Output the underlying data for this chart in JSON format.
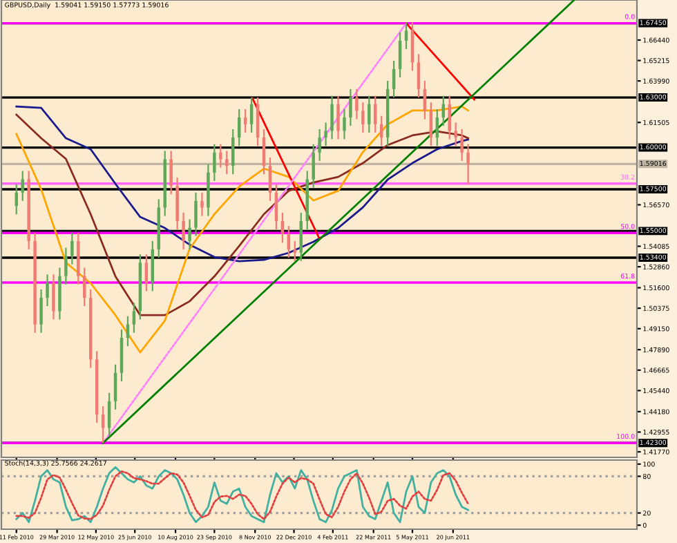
{
  "chart_data": [
    {
      "type": "candlestick",
      "title": "GBPUSD,Daily  1.59041 1.59150 1.57773 1.59016",
      "x": [
        "2010-02-11",
        "2010-02-18",
        "2010-02-25",
        "2010-03-04",
        "2010-03-11",
        "2010-03-18",
        "2010-03-25",
        "2010-04-01",
        "2010-04-08",
        "2010-04-15",
        "2010-04-22",
        "2010-04-29",
        "2010-05-06",
        "2010-05-13",
        "2010-05-20",
        "2010-05-27",
        "2010-06-03",
        "2010-06-10",
        "2010-06-17",
        "2010-06-24",
        "2010-07-01",
        "2010-07-08",
        "2010-07-15",
        "2010-07-22",
        "2010-07-29",
        "2010-08-05",
        "2010-08-12",
        "2010-08-19",
        "2010-08-26",
        "2010-09-02",
        "2010-09-09",
        "2010-09-16",
        "2010-09-23",
        "2010-09-30",
        "2010-10-07",
        "2010-10-14",
        "2010-10-21",
        "2010-10-28",
        "2010-11-04",
        "2010-11-11",
        "2010-11-18",
        "2010-11-25",
        "2010-12-02",
        "2010-12-09",
        "2010-12-16",
        "2010-12-23",
        "2010-12-30",
        "2011-01-06",
        "2011-01-13",
        "2011-01-20",
        "2011-01-27",
        "2011-02-03",
        "2011-02-10",
        "2011-02-17",
        "2011-02-24",
        "2011-03-03",
        "2011-03-10",
        "2011-03-17",
        "2011-03-24",
        "2011-03-31",
        "2011-04-07",
        "2011-04-14",
        "2011-04-21",
        "2011-04-28",
        "2011-05-05",
        "2011-05-12",
        "2011-05-19",
        "2011-05-26",
        "2011-06-02",
        "2011-06-09",
        "2011-06-16",
        "2011-06-23",
        "2011-06-30",
        "2011-07-07"
      ],
      "ohlc": [
        [
          1.565,
          1.578,
          1.56,
          1.573
        ],
        [
          1.573,
          1.586,
          1.568,
          1.581
        ],
        [
          1.581,
          1.586,
          1.539,
          1.544
        ],
        [
          1.544,
          1.549,
          1.489,
          1.494
        ],
        [
          1.494,
          1.515,
          1.489,
          1.51
        ],
        [
          1.51,
          1.524,
          1.505,
          1.519
        ],
        [
          1.519,
          1.524,
          1.497,
          1.502
        ],
        [
          1.502,
          1.528,
          1.497,
          1.523
        ],
        [
          1.523,
          1.54,
          1.518,
          1.535
        ],
        [
          1.535,
          1.549,
          1.53,
          1.544
        ],
        [
          1.544,
          1.549,
          1.518,
          1.523
        ],
        [
          1.523,
          1.528,
          1.505,
          1.51
        ],
        [
          1.51,
          1.515,
          1.468,
          1.473
        ],
        [
          1.473,
          1.478,
          1.435,
          1.44
        ],
        [
          1.44,
          1.445,
          1.423,
          1.432
        ],
        [
          1.432,
          1.453,
          1.427,
          1.448
        ],
        [
          1.448,
          1.47,
          1.443,
          1.465
        ],
        [
          1.465,
          1.491,
          1.46,
          1.486
        ],
        [
          1.486,
          1.499,
          1.481,
          1.494
        ],
        [
          1.494,
          1.507,
          1.489,
          1.502
        ],
        [
          1.502,
          1.536,
          1.497,
          1.531
        ],
        [
          1.531,
          1.536,
          1.514,
          1.519
        ],
        [
          1.519,
          1.544,
          1.514,
          1.539
        ],
        [
          1.539,
          1.569,
          1.534,
          1.564
        ],
        [
          1.564,
          1.598,
          1.559,
          1.593
        ],
        [
          1.593,
          1.598,
          1.572,
          1.577
        ],
        [
          1.577,
          1.582,
          1.551,
          1.556
        ],
        [
          1.556,
          1.561,
          1.539,
          1.544
        ],
        [
          1.544,
          1.557,
          1.539,
          1.552
        ],
        [
          1.552,
          1.573,
          1.547,
          1.568
        ],
        [
          1.568,
          1.573,
          1.559,
          1.564
        ],
        [
          1.564,
          1.59,
          1.559,
          1.585
        ],
        [
          1.585,
          1.602,
          1.58,
          1.597
        ],
        [
          1.597,
          1.602,
          1.588,
          1.593
        ],
        [
          1.593,
          1.598,
          1.584,
          1.589
        ],
        [
          1.589,
          1.611,
          1.584,
          1.606
        ],
        [
          1.606,
          1.623,
          1.601,
          1.618
        ],
        [
          1.618,
          1.623,
          1.609,
          1.614
        ],
        [
          1.614,
          1.63,
          1.609,
          1.626
        ],
        [
          1.626,
          1.63,
          1.601,
          1.606
        ],
        [
          1.606,
          1.611,
          1.584,
          1.589
        ],
        [
          1.589,
          1.594,
          1.568,
          1.573
        ],
        [
          1.573,
          1.578,
          1.551,
          1.556
        ],
        [
          1.556,
          1.561,
          1.543,
          1.548
        ],
        [
          1.548,
          1.553,
          1.534,
          1.539
        ],
        [
          1.539,
          1.544,
          1.532,
          1.537
        ],
        [
          1.537,
          1.561,
          1.532,
          1.556
        ],
        [
          1.556,
          1.586,
          1.551,
          1.581
        ],
        [
          1.581,
          1.602,
          1.576,
          1.597
        ],
        [
          1.597,
          1.611,
          1.592,
          1.606
        ],
        [
          1.606,
          1.615,
          1.601,
          1.61
        ],
        [
          1.61,
          1.631,
          1.605,
          1.626
        ],
        [
          1.626,
          1.631,
          1.605,
          1.61
        ],
        [
          1.61,
          1.623,
          1.605,
          1.618
        ],
        [
          1.618,
          1.635,
          1.613,
          1.63
        ],
        [
          1.63,
          1.635,
          1.617,
          1.622
        ],
        [
          1.622,
          1.627,
          1.609,
          1.614
        ],
        [
          1.614,
          1.631,
          1.609,
          1.626
        ],
        [
          1.626,
          1.631,
          1.609,
          1.614
        ],
        [
          1.614,
          1.619,
          1.601,
          1.606
        ],
        [
          1.606,
          1.64,
          1.601,
          1.635
        ],
        [
          1.635,
          1.652,
          1.63,
          1.647
        ],
        [
          1.647,
          1.669,
          1.642,
          1.664
        ],
        [
          1.664,
          1.675,
          1.659,
          1.67
        ],
        [
          1.67,
          1.675,
          1.646,
          1.651
        ],
        [
          1.651,
          1.656,
          1.63,
          1.635
        ],
        [
          1.635,
          1.64,
          1.617,
          1.622
        ],
        [
          1.622,
          1.627,
          1.601,
          1.606
        ],
        [
          1.606,
          1.623,
          1.601,
          1.618
        ],
        [
          1.618,
          1.631,
          1.613,
          1.626
        ],
        [
          1.626,
          1.631,
          1.605,
          1.61
        ],
        [
          1.61,
          1.615,
          1.601,
          1.606
        ],
        [
          1.606,
          1.611,
          1.592,
          1.597
        ],
        [
          1.597,
          1.602,
          1.578,
          1.59
        ]
      ],
      "series": [
        {
          "type": "line",
          "color": "#1a1a8c",
          "x": [
            "2010-02-11",
            "2010-03-11",
            "2010-04-08",
            "2010-05-06",
            "2010-06-03",
            "2010-07-01",
            "2010-07-29",
            "2010-08-26",
            "2010-09-23",
            "2010-10-21",
            "2010-11-18",
            "2010-12-16",
            "2011-01-13",
            "2011-02-10",
            "2011-03-10",
            "2011-04-07",
            "2011-05-05",
            "2011-06-02",
            "2011-06-30",
            "2011-07-07"
          ],
          "values": [
            1.6246,
            1.6238,
            1.6056,
            1.599,
            1.5783,
            1.5584,
            1.5518,
            1.5418,
            1.5344,
            1.5319,
            1.5327,
            1.5369,
            1.5435,
            1.5518,
            1.5642,
            1.5808,
            1.5907,
            1.599,
            1.6039,
            1.6048
          ]
        },
        {
          "type": "line",
          "color": "#8b2a1e",
          "x": [
            "2010-02-11",
            "2010-03-11",
            "2010-04-08",
            "2010-05-06",
            "2010-06-03",
            "2010-07-01",
            "2010-07-29",
            "2010-08-26",
            "2010-09-23",
            "2010-10-21",
            "2010-11-18",
            "2010-12-16",
            "2011-01-13",
            "2011-02-10",
            "2011-03-10",
            "2011-04-07",
            "2011-05-05",
            "2011-06-02",
            "2011-06-30",
            "2011-07-07"
          ],
          "values": [
            1.6197,
            1.6056,
            1.5932,
            1.5601,
            1.5228,
            1.4996,
            1.4996,
            1.5079,
            1.5228,
            1.541,
            1.5601,
            1.5741,
            1.5791,
            1.5824,
            1.5907,
            1.6015,
            1.6073,
            1.6097,
            1.6073,
            1.6056
          ]
        },
        {
          "type": "line",
          "color": "#ffa500",
          "x": [
            "2010-02-11",
            "2010-03-11",
            "2010-04-08",
            "2010-05-06",
            "2010-06-03",
            "2010-07-01",
            "2010-07-29",
            "2010-08-26",
            "2010-09-23",
            "2010-10-21",
            "2010-11-18",
            "2010-12-16",
            "2011-01-13",
            "2011-02-10",
            "2011-03-10",
            "2011-04-07",
            "2011-05-05",
            "2011-06-02",
            "2011-06-30",
            "2011-07-07"
          ],
          "values": [
            1.6081,
            1.575,
            1.5311,
            1.5187,
            1.4996,
            1.4773,
            1.4963,
            1.5394,
            1.5601,
            1.5766,
            1.5874,
            1.5824,
            1.5683,
            1.5741,
            1.5973,
            1.6139,
            1.6222,
            1.6222,
            1.6246,
            1.6222
          ]
        },
        {
          "type": "line",
          "color": "#ff0000",
          "x": [
            "2010-11-05",
            "2011-01-20"
          ],
          "values": [
            1.6296,
            1.5452
          ]
        },
        {
          "type": "line",
          "color": "#ff0000",
          "x": [
            "2011-04-28",
            "2011-07-14"
          ],
          "values": [
            1.6745,
            1.6288
          ]
        },
        {
          "type": "line",
          "color": "#ff80ff",
          "line_style": "dotted",
          "x": [
            "2010-05-20",
            "2011-04-28"
          ],
          "values": [
            1.423,
            1.6745
          ]
        },
        {
          "type": "line",
          "color": "#008000",
          "x": [
            "2010-05-20",
            "2011-11-04"
          ],
          "values": [
            1.423,
            1.6884
          ]
        }
      ],
      "ref_lines": [
        {
          "axis": "y",
          "value": 1.6745,
          "label": "1.67450",
          "color": "#000000"
        },
        {
          "axis": "y",
          "value": 1.63,
          "label": "1.63000",
          "color": "#000000"
        },
        {
          "axis": "y",
          "value": 1.6,
          "label": "1.60000",
          "color": "#000000"
        },
        {
          "axis": "y",
          "value": 1.59016,
          "label": "1.59016",
          "color": "#c0b4a4"
        },
        {
          "axis": "y",
          "value": 1.575,
          "label": "1.57500",
          "color": "#000000"
        },
        {
          "axis": "y",
          "value": 1.55,
          "label": "1.55000",
          "color": "#000000"
        },
        {
          "axis": "y",
          "value": 1.534,
          "label": "1.53400",
          "color": "#000000"
        },
        {
          "axis": "y",
          "value": 1.423,
          "label": "1.42300",
          "color": "#000000"
        },
        {
          "axis": "y",
          "value": 1.6745,
          "color": "#ff00ff"
        },
        {
          "axis": "y",
          "value": 1.5784,
          "color": "#ff66ff"
        },
        {
          "axis": "y",
          "value": 1.5488,
          "color": "#ff00ff"
        },
        {
          "axis": "y",
          "value": 1.5191,
          "color": "#ff00ff"
        },
        {
          "axis": "y",
          "value": 1.423,
          "color": "#ff00ff"
        }
      ],
      "annotations": [
        "0.0",
        "38.2",
        "50.0",
        "61.8",
        "100.0"
      ],
      "xlim": [
        "2010-01-25",
        "2012-01-14"
      ],
      "xticks": [
        {
          "value": "2010-02-11",
          "label": null
        },
        {
          "value": "2010-03-29",
          "label": null
        },
        {
          "value": "2010-05-12",
          "label": null
        },
        {
          "value": "2010-06-25",
          "label": null
        },
        {
          "value": "2010-08-10",
          "label": null
        },
        {
          "value": "2010-09-23",
          "label": null
        },
        {
          "value": "2010-11-08",
          "label": null
        },
        {
          "value": "2010-12-22",
          "label": null
        },
        {
          "value": "2011-02-04",
          "label": null
        },
        {
          "value": "2011-03-22",
          "label": null
        },
        {
          "value": "2011-05-05",
          "label": null
        },
        {
          "value": "2011-06-20",
          "label": null
        }
      ],
      "ylim": [
        1.4144,
        1.6884
      ],
      "yticks": [
        {
          "value": 1.4177,
          "label": "1.41770"
        },
        {
          "value": 1.42955,
          "label": "1.42955"
        },
        {
          "value": 1.4418,
          "label": "1.44180"
        },
        {
          "value": 1.4544,
          "label": "1.45440"
        },
        {
          "value": 1.46665,
          "label": "1.46665"
        },
        {
          "value": 1.4789,
          "label": "1.47890"
        },
        {
          "value": 1.4915,
          "label": "1.49150"
        },
        {
          "value": 1.50375,
          "label": "1.50375"
        },
        {
          "value": 1.516,
          "label": "1.51600"
        },
        {
          "value": 1.5286,
          "label": "1.52860"
        },
        {
          "value": 1.54085,
          "label": "1.54085"
        },
        {
          "value": 1.5657,
          "label": "1.56570"
        },
        {
          "value": 1.61505,
          "label": "1.61505"
        },
        {
          "value": 1.6399,
          "label": "1.63990"
        },
        {
          "value": 1.65215,
          "label": "1.65215"
        },
        {
          "value": 1.6644,
          "label": "1.66440"
        }
      ],
      "tick_labels": "y"
    },
    {
      "type": "line",
      "title": "Stoch(14,3,3) 25.7566 24.2617",
      "x": [
        "2010-02-11",
        "2010-02-18",
        "2010-02-25",
        "2010-03-04",
        "2010-03-11",
        "2010-03-18",
        "2010-03-25",
        "2010-04-01",
        "2010-04-08",
        "2010-04-15",
        "2010-04-22",
        "2010-04-29",
        "2010-05-06",
        "2010-05-13",
        "2010-05-20",
        "2010-05-27",
        "2010-06-03",
        "2010-06-10",
        "2010-06-17",
        "2010-06-24",
        "2010-07-01",
        "2010-07-08",
        "2010-07-15",
        "2010-07-22",
        "2010-07-29",
        "2010-08-05",
        "2010-08-12",
        "2010-08-19",
        "2010-08-26",
        "2010-09-02",
        "2010-09-09",
        "2010-09-16",
        "2010-09-23",
        "2010-09-30",
        "2010-10-07",
        "2010-10-14",
        "2010-10-21",
        "2010-10-28",
        "2010-11-04",
        "2010-11-11",
        "2010-11-18",
        "2010-11-25",
        "2010-12-02",
        "2010-12-09",
        "2010-12-16",
        "2010-12-23",
        "2010-12-30",
        "2011-01-06",
        "2011-01-13",
        "2011-01-20",
        "2011-01-27",
        "2011-02-03",
        "2011-02-10",
        "2011-02-17",
        "2011-02-24",
        "2011-03-03",
        "2011-03-10",
        "2011-03-17",
        "2011-03-24",
        "2011-03-31",
        "2011-04-07",
        "2011-04-14",
        "2011-04-21",
        "2011-04-28",
        "2011-05-05",
        "2011-05-12",
        "2011-05-19",
        "2011-05-26",
        "2011-06-02",
        "2011-06-09",
        "2011-06-16",
        "2011-06-23",
        "2011-06-30",
        "2011-07-07"
      ],
      "series": [
        {
          "color": "#40b0a0",
          "values": [
            10,
            20,
            5,
            40,
            80,
            90,
            75,
            70,
            30,
            8,
            10,
            15,
            5,
            30,
            60,
            85,
            95,
            85,
            75,
            70,
            80,
            65,
            60,
            80,
            90,
            85,
            75,
            50,
            20,
            5,
            15,
            30,
            70,
            40,
            35,
            55,
            60,
            30,
            15,
            10,
            5,
            50,
            85,
            70,
            80,
            60,
            90,
            75,
            40,
            10,
            5,
            25,
            60,
            80,
            85,
            90,
            30,
            15,
            10,
            40,
            70,
            20,
            5,
            55,
            80,
            30,
            20,
            70,
            85,
            90,
            80,
            50,
            30,
            25
          ]
        },
        {
          "color": "#e04040",
          "line_style": "dotted",
          "values": [
            15,
            15,
            12,
            20,
            45,
            75,
            82,
            78,
            58,
            36,
            16,
            11,
            10,
            17,
            32,
            58,
            80,
            88,
            85,
            77,
            75,
            72,
            68,
            68,
            77,
            85,
            83,
            70,
            48,
            25,
            13,
            17,
            38,
            47,
            48,
            43,
            50,
            48,
            35,
            18,
            10,
            22,
            47,
            68,
            78,
            70,
            77,
            75,
            68,
            42,
            18,
            13,
            30,
            55,
            75,
            85,
            68,
            45,
            18,
            22,
            40,
            43,
            32,
            27,
            47,
            55,
            43,
            40,
            58,
            82,
            85,
            73,
            53,
            35
          ]
        }
      ],
      "ref_lines": [
        {
          "axis": "y",
          "value": 80,
          "color": "#a0a0a0",
          "line_style": "dotted"
        },
        {
          "axis": "y",
          "value": 20,
          "color": "#a0a0a0",
          "line_style": "dotted"
        }
      ],
      "xlim": [
        "2010-01-25",
        "2012-01-14"
      ],
      "xticks": [
        {
          "value": "2010-02-11",
          "label": "11 Feb 2010"
        },
        {
          "value": "2010-03-29",
          "label": "29 Mar 2010"
        },
        {
          "value": "2010-05-12",
          "label": "12 May 2010"
        },
        {
          "value": "2010-06-25",
          "label": "25 Jun 2010"
        },
        {
          "value": "2010-08-10",
          "label": "10 Aug 2010"
        },
        {
          "value": "2010-09-23",
          "label": "23 Sep 2010"
        },
        {
          "value": "2010-11-08",
          "label": "8 Nov 2010"
        },
        {
          "value": "2010-12-22",
          "label": "22 Dec 2010"
        },
        {
          "value": "2011-02-04",
          "label": "4 Feb 2011"
        },
        {
          "value": "2011-03-22",
          "label": "22 Mar 2011"
        },
        {
          "value": "2011-05-05",
          "label": "5 May 2011"
        },
        {
          "value": "2011-06-20",
          "label": "20 Jun 2011"
        }
      ],
      "ylim": [
        -6.5,
        106.5
      ],
      "yticks": [
        0,
        20,
        80,
        100
      ]
    }
  ]
}
